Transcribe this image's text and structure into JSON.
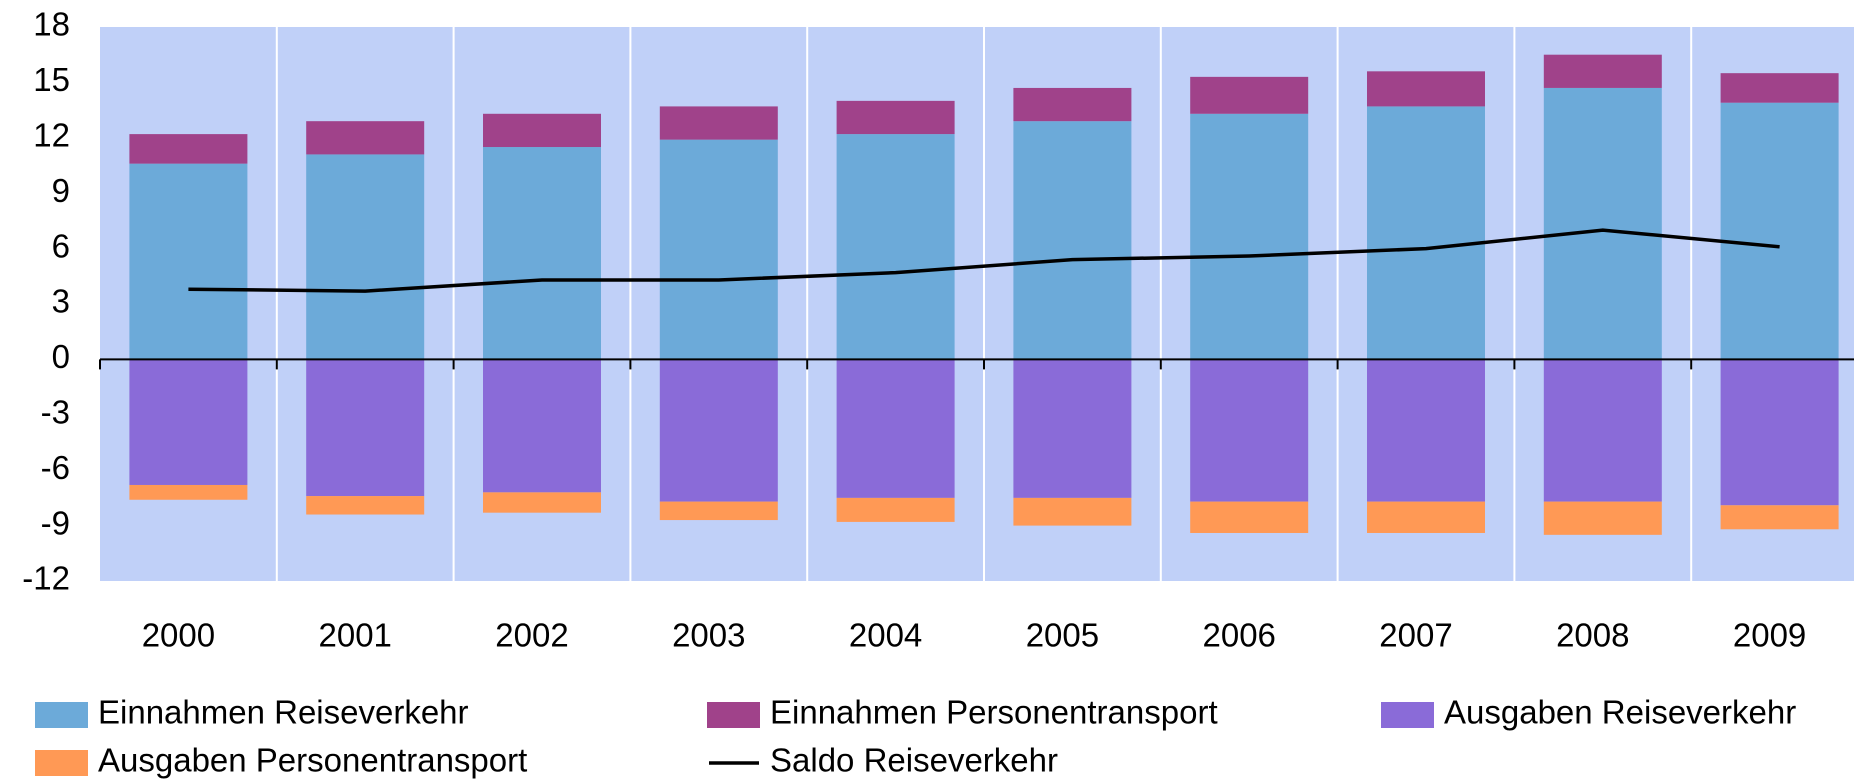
{
  "chart_data": {
    "type": "bar",
    "stacked": true,
    "grid": true,
    "background": "#c0d0f8",
    "categories": [
      "2000",
      "2001",
      "2002",
      "2003",
      "2004",
      "2005",
      "2006",
      "2007",
      "2008",
      "2009"
    ],
    "ylim": [
      -12,
      18
    ],
    "yticks": [
      -12,
      -9,
      -6,
      -3,
      0,
      3,
      6,
      9,
      12,
      15,
      18
    ],
    "series": [
      {
        "name": "Einnahmen Reiseverkehr",
        "color": "#6caad9",
        "values": [
          10.6,
          11.1,
          11.5,
          11.9,
          12.2,
          12.9,
          13.3,
          13.7,
          14.7,
          13.9
        ]
      },
      {
        "name": "Einnahmen Personentransport",
        "color": "#a0428a",
        "values": [
          1.6,
          1.8,
          1.8,
          1.8,
          1.8,
          1.8,
          2.0,
          1.9,
          1.8,
          1.6
        ]
      },
      {
        "name": "Ausgaben Reiseverkehr",
        "color": "#8a6bd8",
        "values": [
          -6.8,
          -7.4,
          -7.2,
          -7.7,
          -7.5,
          -7.5,
          -7.7,
          -7.7,
          -7.7,
          -7.9
        ]
      },
      {
        "name": "Ausgaben Personentransport",
        "color": "#ff9955",
        "values": [
          -0.8,
          -1.0,
          -1.1,
          -1.0,
          -1.3,
          -1.5,
          -1.7,
          -1.7,
          -1.8,
          -1.3
        ]
      },
      {
        "name": "Saldo Reiseverkehr",
        "color": "#000000",
        "type": "line",
        "values": [
          3.8,
          3.7,
          4.3,
          4.3,
          4.7,
          5.4,
          5.6,
          6.0,
          7.0,
          6.1
        ]
      }
    ]
  }
}
